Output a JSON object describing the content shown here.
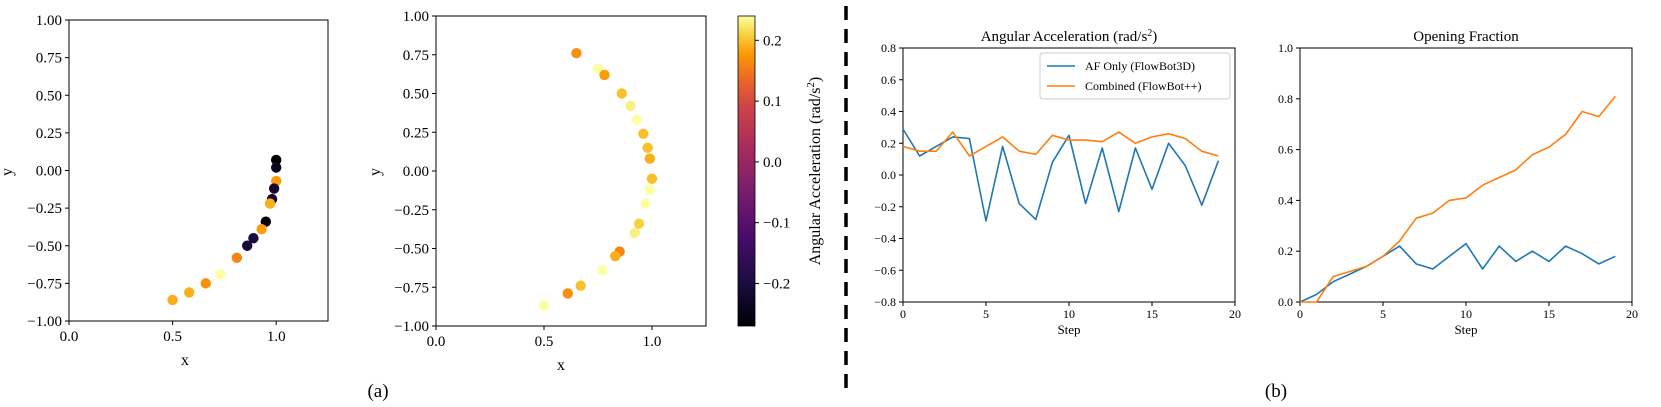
{
  "chart_data": [
    {
      "type": "scatter",
      "xlabel": "x",
      "ylabel": "y",
      "xlim": [
        0.0,
        1.25
      ],
      "ylim": [
        -1.0,
        1.0
      ],
      "x_ticks": [
        "0.0",
        "0.5",
        "1.0"
      ],
      "y_ticks": [
        "1.00",
        "0.75",
        "0.50",
        "0.25",
        "0.00",
        "−0.25",
        "−0.50",
        "−0.75",
        "−1.00"
      ],
      "points": [
        {
          "x": 1.0,
          "y": 0.07,
          "c": -0.27
        },
        {
          "x": 1.0,
          "y": 0.02,
          "c": -0.24
        },
        {
          "x": 1.0,
          "y": -0.07,
          "c": 0.18
        },
        {
          "x": 0.99,
          "y": -0.12,
          "c": -0.22
        },
        {
          "x": 0.98,
          "y": -0.19,
          "c": -0.21
        },
        {
          "x": 0.97,
          "y": -0.22,
          "c": 0.19
        },
        {
          "x": 0.95,
          "y": -0.34,
          "c": -0.28
        },
        {
          "x": 0.93,
          "y": -0.39,
          "c": 0.18
        },
        {
          "x": 0.89,
          "y": -0.45,
          "c": -0.2
        },
        {
          "x": 0.86,
          "y": -0.5,
          "c": -0.21
        },
        {
          "x": 0.81,
          "y": -0.58,
          "c": 0.16
        },
        {
          "x": 0.73,
          "y": -0.69,
          "c": 0.24
        },
        {
          "x": 0.66,
          "y": -0.75,
          "c": 0.17
        },
        {
          "x": 0.58,
          "y": -0.81,
          "c": 0.19
        },
        {
          "x": 0.5,
          "y": -0.86,
          "c": 0.19
        }
      ]
    },
    {
      "type": "scatter",
      "xlabel": "x",
      "ylabel": "y",
      "xlim": [
        0.0,
        1.25
      ],
      "ylim": [
        -1.0,
        1.0
      ],
      "x_ticks": [
        "0.0",
        "0.5",
        "1.0"
      ],
      "y_ticks": [
        "1.00",
        "0.75",
        "0.50",
        "0.25",
        "0.00",
        "−0.25",
        "−0.50",
        "−0.75",
        "−1.00"
      ],
      "colorbar": {
        "label": "Angular Acceleration (rad/s2)",
        "min": -0.27,
        "max": 0.24,
        "ticks": [
          "0.2",
          "0.1",
          "0.0",
          "−0.1",
          "−0.2"
        ],
        "cmap": "inferno"
      },
      "points": [
        {
          "x": 0.65,
          "y": 0.76,
          "c": 0.17
        },
        {
          "x": 0.75,
          "y": 0.66,
          "c": 0.24
        },
        {
          "x": 0.78,
          "y": 0.62,
          "c": 0.18
        },
        {
          "x": 0.86,
          "y": 0.5,
          "c": 0.2
        },
        {
          "x": 0.9,
          "y": 0.42,
          "c": 0.23
        },
        {
          "x": 0.93,
          "y": 0.33,
          "c": 0.24
        },
        {
          "x": 0.96,
          "y": 0.24,
          "c": 0.2
        },
        {
          "x": 0.98,
          "y": 0.15,
          "c": 0.2
        },
        {
          "x": 0.99,
          "y": 0.08,
          "c": 0.19
        },
        {
          "x": 1.0,
          "y": -0.05,
          "c": 0.2
        },
        {
          "x": 0.99,
          "y": -0.12,
          "c": 0.24
        },
        {
          "x": 0.97,
          "y": -0.21,
          "c": 0.24
        },
        {
          "x": 0.94,
          "y": -0.34,
          "c": 0.21
        },
        {
          "x": 0.92,
          "y": -0.4,
          "c": 0.23
        },
        {
          "x": 0.85,
          "y": -0.52,
          "c": 0.16
        },
        {
          "x": 0.83,
          "y": -0.55,
          "c": 0.19
        },
        {
          "x": 0.77,
          "y": -0.64,
          "c": 0.24
        },
        {
          "x": 0.67,
          "y": -0.74,
          "c": 0.2
        },
        {
          "x": 0.61,
          "y": -0.79,
          "c": 0.17
        },
        {
          "x": 0.5,
          "y": -0.87,
          "c": 0.24
        }
      ]
    },
    {
      "type": "line",
      "title": "Angular Acceleration (rad/s2)",
      "xlabel": "Step",
      "xlim": [
        0,
        20
      ],
      "ylim": [
        -0.8,
        0.8
      ],
      "x_ticks": [
        "0",
        "5",
        "10",
        "15",
        "20"
      ],
      "y_ticks": [
        "0.8",
        "0.6",
        "0.4",
        "0.2",
        "0.0",
        "−0.2",
        "−0.4",
        "−0.6",
        "−0.8"
      ],
      "legend": "top-right",
      "x": [
        0,
        1,
        2,
        3,
        4,
        5,
        6,
        7,
        8,
        9,
        10,
        11,
        12,
        13,
        14,
        15,
        16,
        17,
        18,
        19
      ],
      "series": [
        {
          "name": "AF Only (FlowBot3D)",
          "color": "#1f77b4",
          "values": [
            0.29,
            0.12,
            0.18,
            0.24,
            0.23,
            -0.29,
            0.18,
            -0.18,
            -0.28,
            0.08,
            0.25,
            -0.18,
            0.17,
            -0.23,
            0.17,
            -0.09,
            0.2,
            0.06,
            -0.19,
            0.09
          ]
        },
        {
          "name": "Combined (FlowBot++)",
          "color": "#ff7f0e",
          "values": [
            0.18,
            0.15,
            0.15,
            0.27,
            0.12,
            0.18,
            0.24,
            0.15,
            0.13,
            0.25,
            0.22,
            0.22,
            0.21,
            0.27,
            0.2,
            0.24,
            0.26,
            0.23,
            0.15,
            0.12
          ]
        }
      ]
    },
    {
      "type": "line",
      "title": "Opening Fraction",
      "xlabel": "Step",
      "xlim": [
        0,
        20
      ],
      "ylim": [
        0.0,
        1.0
      ],
      "x_ticks": [
        "0",
        "5",
        "10",
        "15",
        "20"
      ],
      "y_ticks": [
        "1.0",
        "0.8",
        "0.6",
        "0.4",
        "0.2",
        "0.0"
      ],
      "x": [
        0,
        1,
        2,
        3,
        4,
        5,
        6,
        7,
        8,
        9,
        10,
        11,
        12,
        13,
        14,
        15,
        16,
        17,
        18,
        19
      ],
      "series": [
        {
          "color": "#1f77b4",
          "values": [
            0.0,
            0.03,
            0.08,
            0.11,
            0.14,
            0.18,
            0.22,
            0.15,
            0.13,
            0.18,
            0.23,
            0.13,
            0.22,
            0.16,
            0.2,
            0.16,
            0.22,
            0.19,
            0.15,
            0.18
          ]
        },
        {
          "color": "#ff7f0e",
          "values": [
            0.0,
            0.0,
            0.1,
            0.12,
            0.14,
            0.18,
            0.24,
            0.33,
            0.35,
            0.4,
            0.41,
            0.46,
            0.49,
            0.52,
            0.58,
            0.61,
            0.66,
            0.75,
            0.73,
            0.81
          ]
        }
      ]
    }
  ],
  "panel_labels": {
    "a": "(a)",
    "b": "(b)"
  }
}
